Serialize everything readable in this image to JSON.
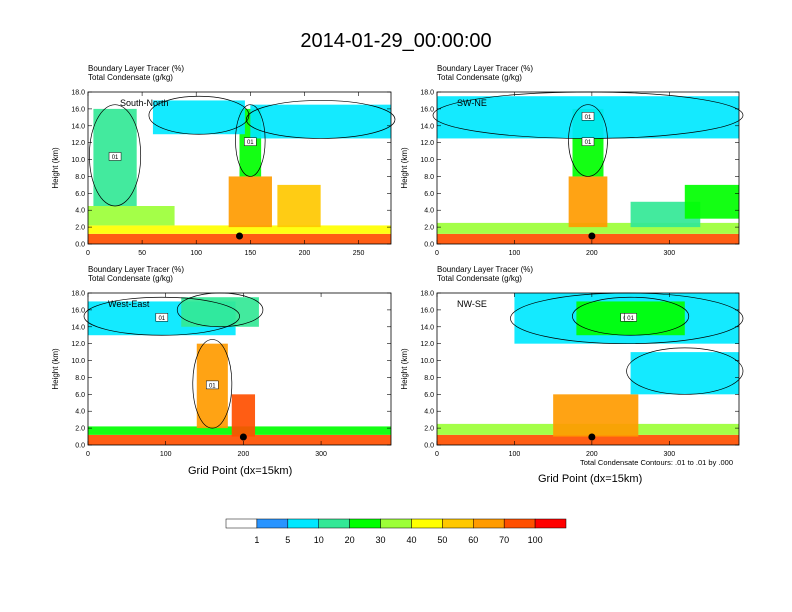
{
  "page": {
    "title": "2014-01-29_00:00:00",
    "x_axis_label": "Grid Point (dx=15km)",
    "footnote": "Total Condensate Contours: .01 to .01 by .000"
  },
  "colorbar": {
    "colors": [
      "#ffffff",
      "#2894ff",
      "#00e8ff",
      "#33e896",
      "#00ff00",
      "#9cff38",
      "#ffff00",
      "#ffc800",
      "#ff9b00",
      "#ff4f00",
      "#ff0000"
    ],
    "labels": [
      "1",
      "5",
      "10",
      "20",
      "30",
      "40",
      "50",
      "60",
      "70",
      "100"
    ]
  },
  "chart_data": [
    {
      "type": "heatmap",
      "panel_label": "South-North",
      "title_line1": "Boundary Layer Tracer   (%)",
      "title_line2": "Total Condensate   (g/kg)",
      "ylabel": "Height (km)",
      "xlabel": "",
      "xlim": [
        0,
        280
      ],
      "ylim": [
        0,
        18
      ],
      "xticks": [
        0,
        50,
        100,
        150,
        200,
        250
      ],
      "yticks": [
        "0.0",
        "2.0",
        "4.0",
        "6.0",
        "8.0",
        "10.0",
        "12.0",
        "14.0",
        "16.0",
        "18.0"
      ],
      "contour_label": "01",
      "surface_marker_x": 140,
      "tracer_regions": [
        {
          "x": [
            0,
            280
          ],
          "y": [
            0,
            1.2
          ],
          "class": 9
        },
        {
          "x": [
            0,
            280
          ],
          "y": [
            1.2,
            2.2
          ],
          "class": 6
        },
        {
          "x": [
            0,
            80
          ],
          "y": [
            2.2,
            4.5
          ],
          "class": 5
        },
        {
          "x": [
            5,
            45
          ],
          "y": [
            4.5,
            16
          ],
          "class": 3
        },
        {
          "x": [
            130,
            170
          ],
          "y": [
            2,
            8
          ],
          "class": 8
        },
        {
          "x": [
            140,
            160
          ],
          "y": [
            8,
            16
          ],
          "class": 4
        },
        {
          "x": [
            175,
            215
          ],
          "y": [
            2,
            7
          ],
          "class": 7
        },
        {
          "x": [
            150,
            280
          ],
          "y": [
            12.5,
            16.5
          ],
          "class": 2
        },
        {
          "x": [
            60,
            145
          ],
          "y": [
            13,
            17
          ],
          "class": 2
        }
      ]
    },
    {
      "type": "heatmap",
      "panel_label": "SW-NE",
      "title_line1": "Boundary Layer Tracer   (%)",
      "title_line2": "Total Condensate   (g/kg)",
      "ylabel": "Height (km)",
      "xlabel": "",
      "xlim": [
        0,
        390
      ],
      "ylim": [
        0,
        18
      ],
      "xticks": [
        0,
        100,
        200,
        300
      ],
      "yticks": [
        "0.0",
        "2.0",
        "4.0",
        "6.0",
        "8.0",
        "10.0",
        "12.0",
        "14.0",
        "16.0",
        "18.0"
      ],
      "contour_label": "01",
      "surface_marker_x": 200,
      "tracer_regions": [
        {
          "x": [
            0,
            390
          ],
          "y": [
            0,
            1.2
          ],
          "class": 9
        },
        {
          "x": [
            0,
            390
          ],
          "y": [
            1.2,
            2.5
          ],
          "class": 5
        },
        {
          "x": [
            170,
            220
          ],
          "y": [
            2,
            8
          ],
          "class": 8
        },
        {
          "x": [
            175,
            215
          ],
          "y": [
            8,
            16
          ],
          "class": 4
        },
        {
          "x": [
            0,
            390
          ],
          "y": [
            12.5,
            17.5
          ],
          "class": 2
        },
        {
          "x": [
            250,
            340
          ],
          "y": [
            2,
            5
          ],
          "class": 3
        },
        {
          "x": [
            320,
            390
          ],
          "y": [
            3,
            7
          ],
          "class": 4
        }
      ]
    },
    {
      "type": "heatmap",
      "panel_label": "West-East",
      "title_line1": "Boundary Layer Tracer   (%)",
      "title_line2": "Total Condensate   (g/kg)",
      "ylabel": "Height (km)",
      "xlabel": "Grid Point (dx=15km)",
      "xlim": [
        0,
        390
      ],
      "ylim": [
        0,
        18
      ],
      "xticks": [
        0,
        100,
        200,
        300
      ],
      "yticks": [
        "0.0",
        "2.0",
        "4.0",
        "6.0",
        "8.0",
        "10.0",
        "12.0",
        "14.0",
        "16.0",
        "18.0"
      ],
      "contour_label": "01",
      "surface_marker_x": 200,
      "tracer_regions": [
        {
          "x": [
            0,
            390
          ],
          "y": [
            0,
            1.2
          ],
          "class": 9
        },
        {
          "x": [
            0,
            390
          ],
          "y": [
            1.2,
            2.2
          ],
          "class": 4
        },
        {
          "x": [
            140,
            180
          ],
          "y": [
            2,
            12
          ],
          "class": 8
        },
        {
          "x": [
            185,
            215
          ],
          "y": [
            1,
            6
          ],
          "class": 9
        },
        {
          "x": [
            0,
            190
          ],
          "y": [
            13,
            17
          ],
          "class": 2
        },
        {
          "x": [
            120,
            220
          ],
          "y": [
            14,
            17.5
          ],
          "class": 3
        }
      ]
    },
    {
      "type": "heatmap",
      "panel_label": "NW-SE",
      "title_line1": "Boundary Layer Tracer   (%)",
      "title_line2": "Total Condensate   (g/kg)",
      "ylabel": "Height (km)",
      "xlabel": "Grid Point (dx=15km)",
      "xlim": [
        0,
        390
      ],
      "ylim": [
        0,
        18
      ],
      "xticks": [
        0,
        100,
        200,
        300
      ],
      "yticks": [
        "0.0",
        "2.0",
        "4.0",
        "6.0",
        "8.0",
        "10.0",
        "12.0",
        "14.0",
        "16.0",
        "18.0"
      ],
      "contour_label": "01",
      "surface_marker_x": 200,
      "tracer_regions": [
        {
          "x": [
            0,
            390
          ],
          "y": [
            0,
            1.2
          ],
          "class": 9
        },
        {
          "x": [
            0,
            390
          ],
          "y": [
            1.2,
            2.5
          ],
          "class": 5
        },
        {
          "x": [
            150,
            260
          ],
          "y": [
            1,
            6
          ],
          "class": 8
        },
        {
          "x": [
            100,
            390
          ],
          "y": [
            12,
            18
          ],
          "class": 2
        },
        {
          "x": [
            180,
            320
          ],
          "y": [
            13,
            17
          ],
          "class": 4
        },
        {
          "x": [
            250,
            390
          ],
          "y": [
            6,
            11
          ],
          "class": 2
        }
      ]
    }
  ]
}
